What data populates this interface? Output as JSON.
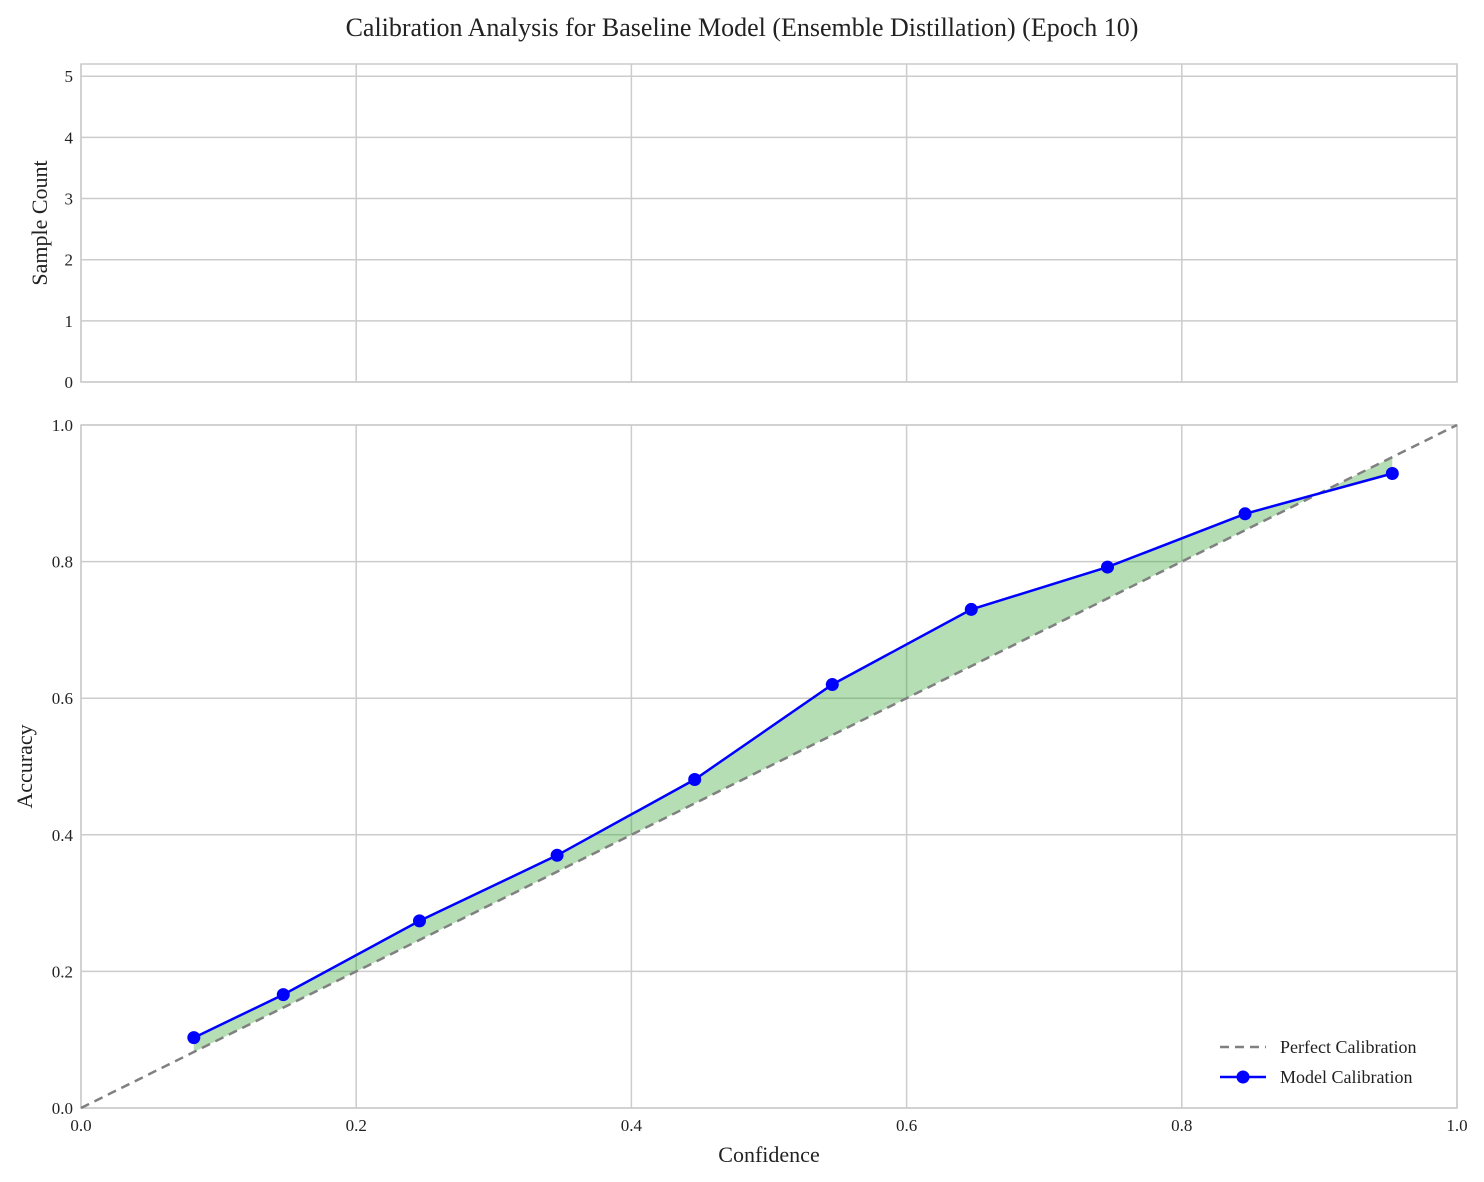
{
  "chart_data": {
    "type": "line",
    "title": "Calibration Analysis for Baseline Model (Ensemble Distillation) (Epoch 10)",
    "panels": [
      {
        "name": "histogram",
        "type": "bar",
        "ylabel": "Sample Count",
        "xlim": [
          0.0,
          1.0
        ],
        "ylim": [
          0,
          5.2
        ],
        "yticks": [
          "0",
          "1",
          "2",
          "3",
          "4",
          "5"
        ],
        "ytick_values": [
          0,
          1,
          2,
          3,
          4,
          5
        ],
        "xtick_values": [
          0.0,
          0.2,
          0.4,
          0.6,
          0.8,
          1.0
        ],
        "values": [],
        "grid": true
      },
      {
        "name": "reliability",
        "type": "line",
        "xlabel": "Confidence",
        "ylabel": "Accuracy",
        "xlim": [
          0.0,
          1.0
        ],
        "ylim": [
          0.0,
          1.0
        ],
        "xticks": [
          "0.0",
          "0.2",
          "0.4",
          "0.6",
          "0.8",
          "1.0"
        ],
        "xtick_values": [
          0.0,
          0.2,
          0.4,
          0.6,
          0.8,
          1.0
        ],
        "yticks": [
          "0.0",
          "0.2",
          "0.4",
          "0.6",
          "0.8",
          "1.0"
        ],
        "ytick_values": [
          0.0,
          0.2,
          0.4,
          0.6,
          0.8,
          1.0
        ],
        "grid": true,
        "legend_position": "lower-right",
        "series": [
          {
            "name": "Perfect Calibration",
            "style": "dashed",
            "color": "#808080",
            "x": [
              0.0,
              1.0
            ],
            "y": [
              0.0,
              1.0
            ]
          },
          {
            "name": "Model Calibration",
            "style": "line-marker",
            "color": "#0000ff",
            "x": [
              0.082,
              0.147,
              0.246,
              0.346,
              0.446,
              0.546,
              0.647,
              0.746,
              0.846,
              0.953
            ],
            "y": [
              0.103,
              0.166,
              0.274,
              0.37,
              0.481,
              0.62,
              0.73,
              0.792,
              0.87,
              0.929
            ]
          }
        ],
        "fill_between": {
          "color": "#2ca02c",
          "opacity": 0.35
        }
      }
    ]
  }
}
